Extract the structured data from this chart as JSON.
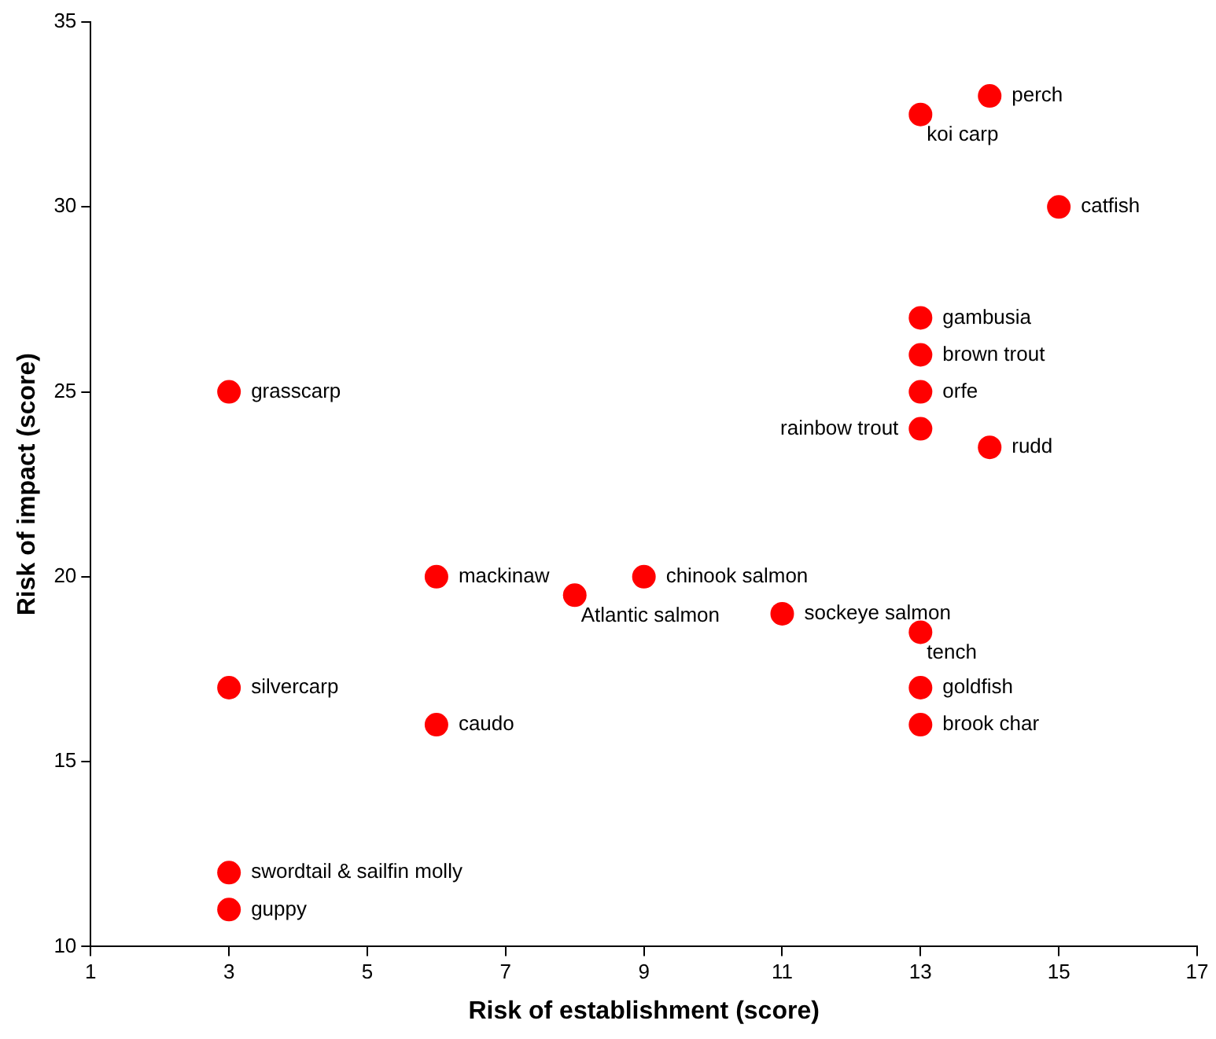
{
  "chart_data": {
    "type": "scatter",
    "xlabel": "Risk of establishment (score)",
    "ylabel": "Risk of impact (score)",
    "series": [
      {
        "color": "#ff0000",
        "x": [
          14,
          13,
          15,
          13,
          13,
          13,
          13,
          14,
          3,
          6,
          9,
          8,
          11,
          13,
          3,
          13,
          6,
          13,
          3,
          3
        ],
        "values": [
          33,
          32.5,
          30,
          27,
          26,
          25,
          24,
          23.5,
          25,
          20,
          20,
          19.5,
          19,
          18.5,
          17,
          17,
          16,
          16,
          12,
          11
        ]
      }
    ],
    "annotations": [
      {
        "text": "perch",
        "x": 14,
        "y": 33
      },
      {
        "text": "koi carp",
        "x": 13,
        "y": 32.5
      },
      {
        "text": "catfish",
        "x": 15,
        "y": 30
      },
      {
        "text": "gambusia",
        "x": 13,
        "y": 27
      },
      {
        "text": "brown trout",
        "x": 13,
        "y": 26
      },
      {
        "text": "orfe",
        "x": 13,
        "y": 25
      },
      {
        "text": "rainbow trout",
        "x": 13,
        "y": 24
      },
      {
        "text": "rudd",
        "x": 14,
        "y": 23.5
      },
      {
        "text": "grasscarp",
        "x": 3,
        "y": 25
      },
      {
        "text": "mackinaw",
        "x": 6,
        "y": 20
      },
      {
        "text": "chinook salmon",
        "x": 9,
        "y": 20
      },
      {
        "text": "Atlantic salmon",
        "x": 8,
        "y": 19.5
      },
      {
        "text": "sockeye salmon",
        "x": 11,
        "y": 19
      },
      {
        "text": "tench",
        "x": 13,
        "y": 18.5
      },
      {
        "text": "silvercarp",
        "x": 3,
        "y": 17
      },
      {
        "text": "goldfish",
        "x": 13,
        "y": 17
      },
      {
        "text": "caudo",
        "x": 6,
        "y": 16
      },
      {
        "text": "brook char",
        "x": 13,
        "y": 16
      },
      {
        "text": "swordtail & sailfin molly",
        "x": 3,
        "y": 12
      },
      {
        "text": "guppy",
        "x": 3,
        "y": 11
      }
    ],
    "xlim": [
      1,
      17
    ],
    "xticks": [
      1,
      3,
      5,
      7,
      9,
      11,
      13,
      15,
      17
    ],
    "ylim": [
      10,
      35
    ],
    "yticks": [
      10,
      15,
      20,
      25,
      30,
      35
    ],
    "grid": false,
    "legend": false,
    "marker": "circle"
  }
}
